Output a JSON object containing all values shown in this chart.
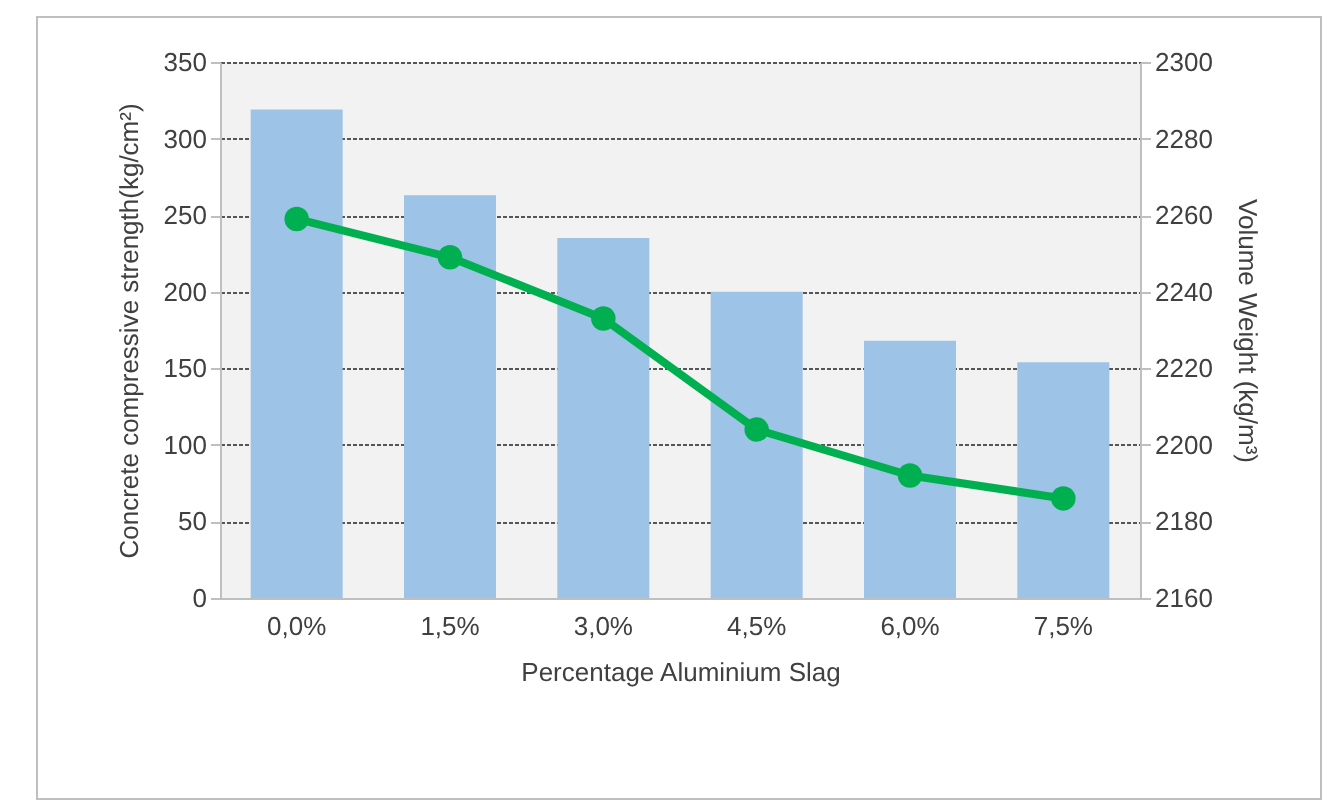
{
  "chart_data": {
    "type": "bar",
    "xlabel": "Percentage Aluminium Slag",
    "ylabel": "Concrete compressive strength(kg/cm²)",
    "y2label": "Volume Weight (kg/m³)",
    "categories": [
      "0,0%",
      "1,5%",
      "3,0%",
      "4,5%",
      "6,0%",
      "7,5%"
    ],
    "series": [
      {
        "color": "#9dc3e6",
        "values": [
          319,
          263,
          235,
          200,
          168,
          154
        ]
      },
      {
        "type": "line",
        "axis": "y2",
        "color": "#00b050",
        "marker": "circle",
        "values": [
          2259,
          2249,
          2233,
          2204,
          2192,
          2186
        ]
      }
    ],
    "ylim": [
      0,
      350
    ],
    "yticks": [
      0,
      50,
      100,
      150,
      200,
      250,
      300,
      350
    ],
    "y2lim": [
      2160,
      2300
    ],
    "y2ticks": [
      2160,
      2180,
      2200,
      2220,
      2240,
      2260,
      2280,
      2300
    ],
    "grid": "y",
    "legend": false
  }
}
